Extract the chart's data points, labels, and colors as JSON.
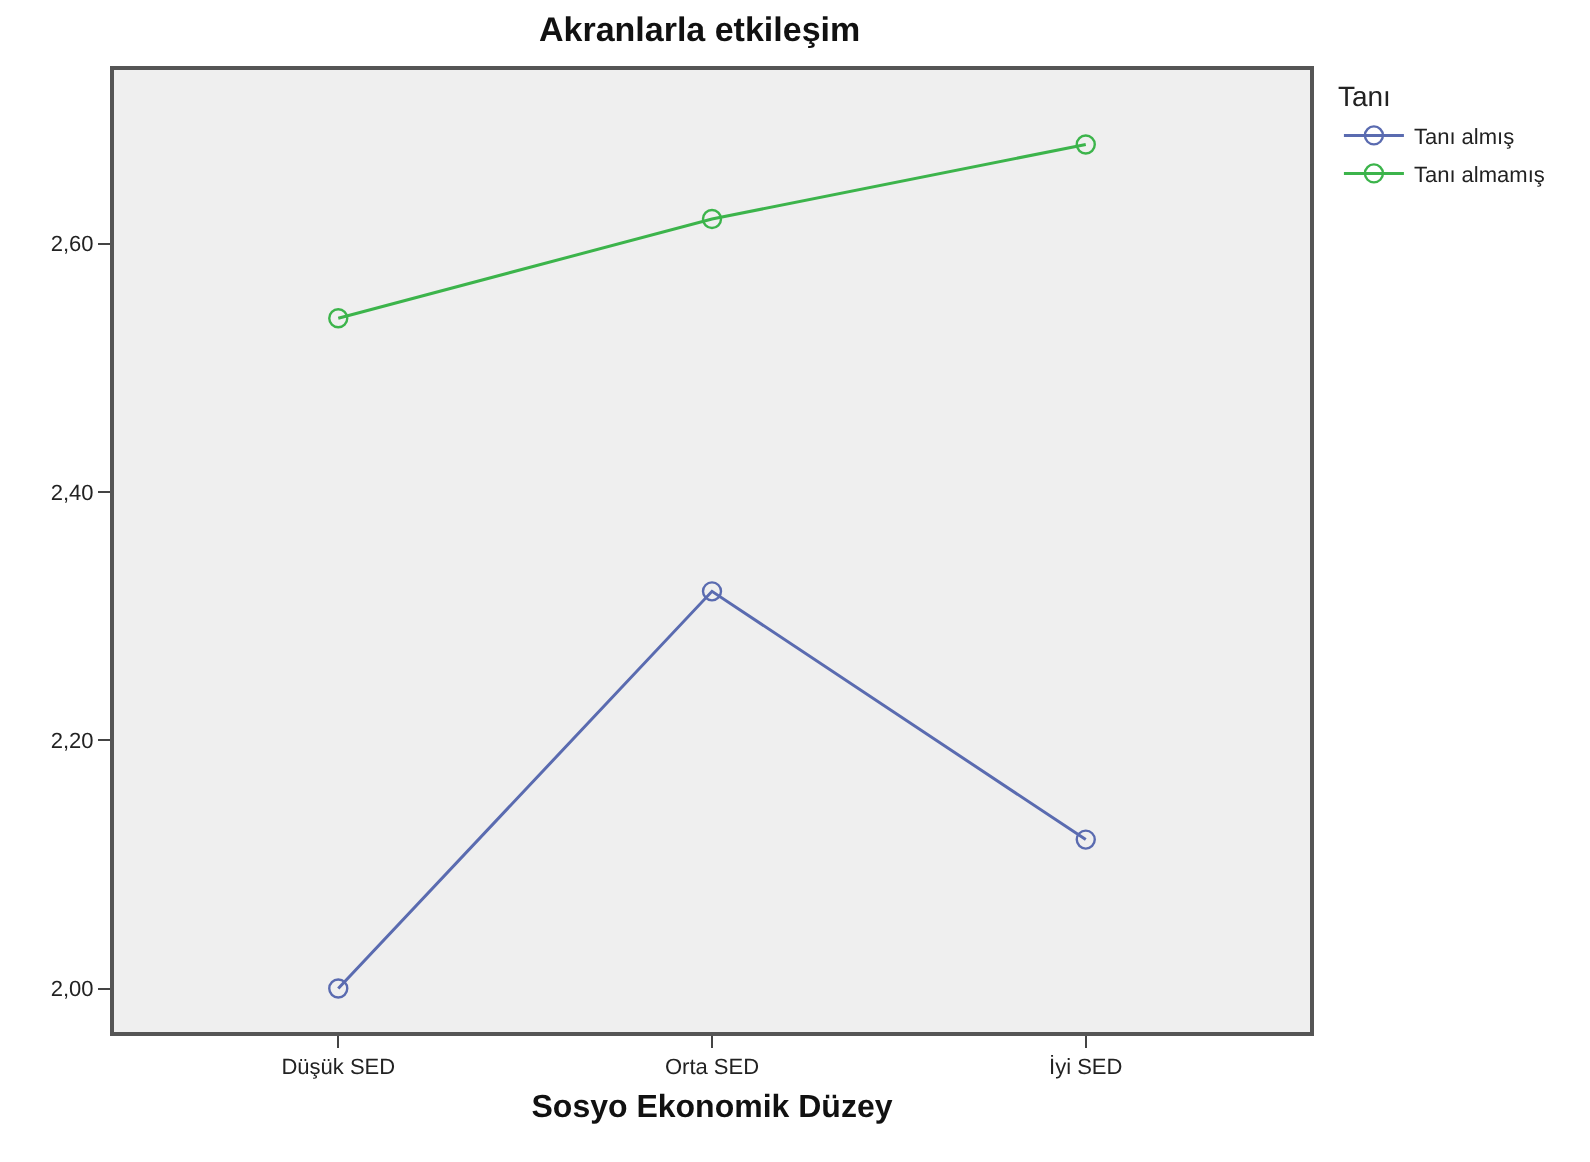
{
  "chart_data": {
    "type": "line",
    "title": "Akranlarla etkileşim",
    "xlabel": "Sosyo Ekonomik Düzey",
    "legend_title": "Tanı",
    "categories": [
      "Düşük SED",
      "Orta SED",
      "İyi SED"
    ],
    "series": [
      {
        "name": "Tanı almış",
        "color": "#5a6bb0",
        "values": [
          2.0,
          2.32,
          2.12
        ]
      },
      {
        "name": "Tanı almamış",
        "color": "#3cb44b",
        "values": [
          2.54,
          2.62,
          2.68
        ]
      }
    ],
    "ylim": [
      1.965,
      2.74
    ],
    "yticks": [
      {
        "value": 2,
        "label": "2,00"
      },
      {
        "value": 2.2,
        "label": "2,20"
      },
      {
        "value": 2.4,
        "label": "2,40"
      },
      {
        "value": 2.6,
        "label": "2,60"
      }
    ],
    "grid": false,
    "legend": "top right",
    "marker": "circle",
    "line_style": "solid"
  }
}
